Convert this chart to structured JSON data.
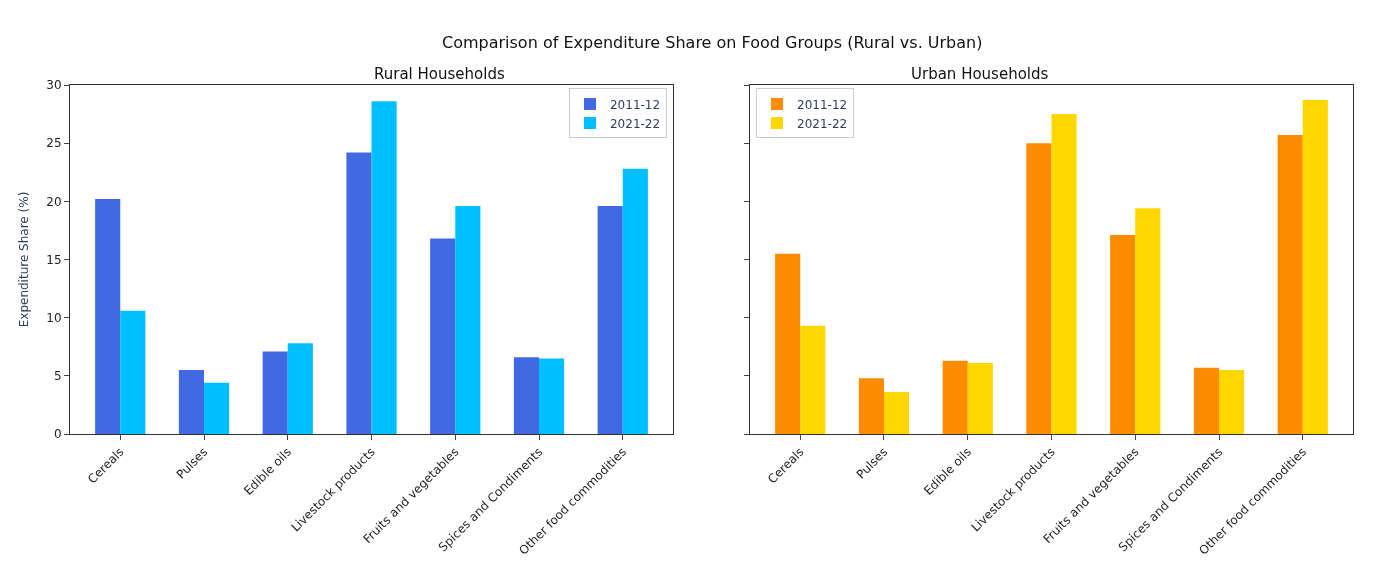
{
  "chart_data": [
    {
      "type": "bar",
      "title": "Rural Households",
      "ylabel": "Expenditure Share (%)",
      "annotations": [
        "Comparison of Expenditure Share on Food Groups (Rural vs. Urban)"
      ],
      "categories": [
        "Cereals",
        "Pulses",
        "Edible oils",
        "Livestock products",
        "Fruits and vegetables",
        "Spices and Condiments",
        "Other food commodities"
      ],
      "series": [
        {
          "name": "2011-12",
          "color": "#4169e1",
          "values": [
            20.2,
            5.5,
            7.1,
            24.2,
            16.8,
            6.6,
            19.6
          ]
        },
        {
          "name": "2021-22",
          "color": "#00bfff",
          "values": [
            10.6,
            4.4,
            7.8,
            28.6,
            19.6,
            6.5,
            22.8
          ]
        }
      ],
      "ylim": [
        0,
        30
      ],
      "yticks": [
        0,
        5,
        10,
        15,
        20,
        25,
        30
      ],
      "legend": "top right"
    },
    {
      "type": "bar",
      "title": "Urban Households",
      "categories": [
        "Cereals",
        "Pulses",
        "Edible oils",
        "Livestock products",
        "Fruits and vegetables",
        "Spices and Condiments",
        "Other food commodities"
      ],
      "series": [
        {
          "name": "2011-12",
          "color": "#ff8c00",
          "values": [
            15.5,
            4.8,
            6.3,
            25.0,
            17.1,
            5.7,
            25.7
          ]
        },
        {
          "name": "2021-22",
          "color": "#ffd700",
          "values": [
            9.3,
            3.6,
            6.1,
            27.5,
            19.4,
            5.5,
            28.7
          ]
        }
      ],
      "ylim": [
        0,
        30
      ],
      "yticks": [
        0,
        5,
        10,
        15,
        20,
        25,
        30
      ],
      "legend": "top left",
      "tick_labels": "x"
    }
  ]
}
